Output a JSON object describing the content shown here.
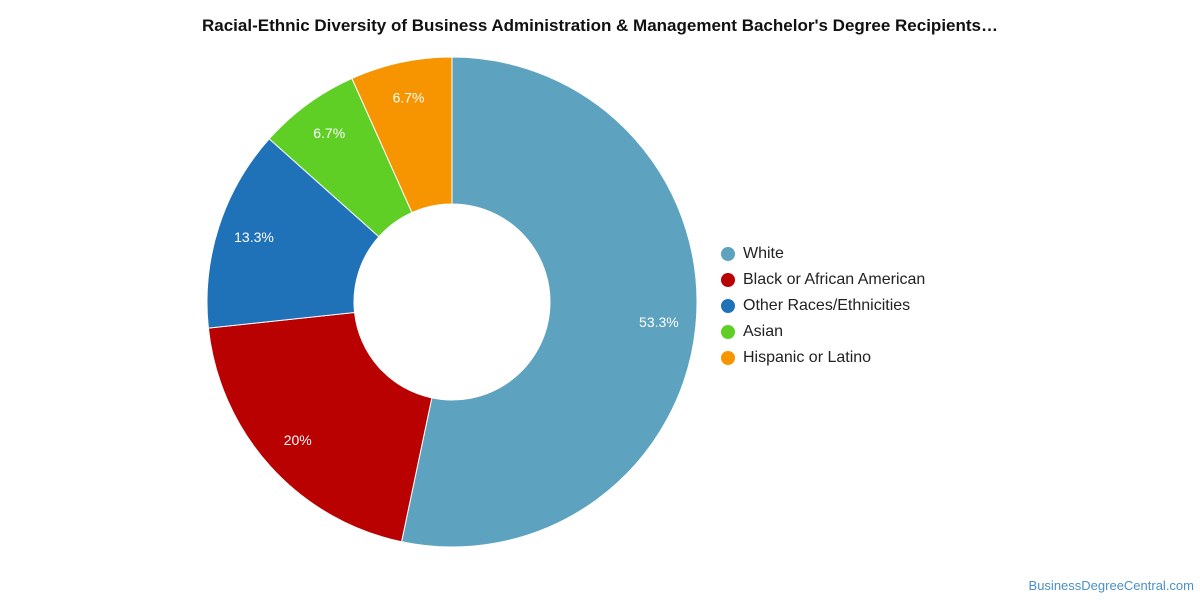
{
  "chart_data": {
    "type": "pie",
    "variant": "donut",
    "title": "Racial-Ethnic Diversity of Business Administration & Management Bachelor's Degree Recipients…",
    "slices": [
      {
        "label": "White",
        "value": 53.3,
        "display": "53.3%",
        "color": "#5da2bf"
      },
      {
        "label": "Black or African American",
        "value": 20.0,
        "display": "20%",
        "color": "#b90101"
      },
      {
        "label": "Other Races/Ethnicities",
        "value": 13.3,
        "display": "13.3%",
        "color": "#1f71b8"
      },
      {
        "label": "Asian",
        "value": 6.7,
        "display": "6.7%",
        "color": "#5fcf26"
      },
      {
        "label": "Hispanic or Latino",
        "value": 6.7,
        "display": "6.7%",
        "color": "#f79500"
      }
    ],
    "legend_position": "right"
  },
  "source": "BusinessDegreeCentral.com"
}
